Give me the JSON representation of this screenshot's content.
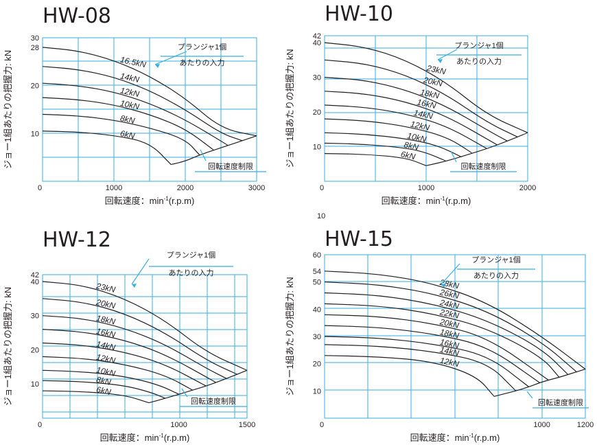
{
  "colors": {
    "grid": "#35aee2",
    "curve": "#231f20",
    "text": "#231f20"
  },
  "stray_label": "10",
  "chart_data": [
    {
      "type": "line",
      "title": "HW-08",
      "xlabel": "回転速度：min-1(r.p.m)",
      "ylabel": "ジョー1組あたりの把握力: kN",
      "xlim": [
        0,
        3000
      ],
      "ylim": [
        0,
        30
      ],
      "x_ticks": [
        "0",
        "1000",
        "2000",
        "3000"
      ],
      "y_ticks": [
        "10",
        "20",
        "28",
        "30"
      ],
      "annotations": [
        "プランジャ1個",
        "あたりの入力",
        "回転速度制限"
      ],
      "series": [
        {
          "name": "16.5kN",
          "x": [
            0,
            500,
            1000,
            1500,
            2000,
            2500,
            3000
          ],
          "y": [
            28,
            27.3,
            25.3,
            22,
            17.4,
            11,
            9.5
          ]
        },
        {
          "name": "14kN",
          "x": [
            0,
            500,
            1000,
            1500,
            2000,
            2500,
            2800
          ],
          "y": [
            24,
            23.4,
            21.8,
            19,
            15,
            10,
            8.5
          ]
        },
        {
          "name": "12kN",
          "x": [
            0,
            500,
            1000,
            1500,
            2000,
            2600
          ],
          "y": [
            20.5,
            20,
            18.7,
            16.3,
            12.9,
            7.5
          ]
        },
        {
          "name": "10kN",
          "x": [
            0,
            500,
            1000,
            1500,
            2000,
            2400
          ],
          "y": [
            17.5,
            17.1,
            16,
            14,
            11,
            6.5
          ]
        },
        {
          "name": "8kN",
          "x": [
            0,
            500,
            1000,
            1500,
            2000,
            2200
          ],
          "y": [
            14,
            13.7,
            12.8,
            11.2,
            8.8,
            5.5
          ]
        },
        {
          "name": "6kN",
          "x": [
            0,
            500,
            1000,
            1500,
            1800
          ],
          "y": [
            10.5,
            10.3,
            9.6,
            8.1,
            3.5
          ]
        },
        {
          "name": "回転速度制限",
          "x": [
            1800,
            2000,
            2200,
            2400,
            2600,
            2800,
            3000
          ],
          "y": [
            3.5,
            4.2,
            5.5,
            6.5,
            7.5,
            8.5,
            9.5
          ]
        }
      ]
    },
    {
      "type": "line",
      "title": "HW-10",
      "xlabel": "回転速度：min-1(r.p.m)",
      "ylabel": "ジョー1組あたりの把握力: kN",
      "xlim": [
        0,
        2000
      ],
      "ylim": [
        0,
        42
      ],
      "x_ticks": [
        "0",
        "1000",
        "2000"
      ],
      "y_ticks": [
        "10",
        "20",
        "30",
        "40",
        "42"
      ],
      "annotations": [
        "プランジャ1個",
        "あたりの入力",
        "回転速度制限"
      ],
      "series": [
        {
          "name": "23kN",
          "x": [
            0,
            400,
            800,
            1200,
            1600,
            2000
          ],
          "y": [
            40,
            38.8,
            35,
            28.5,
            19.2,
            14
          ]
        },
        {
          "name": "20kN",
          "x": [
            0,
            400,
            800,
            1200,
            1600,
            1900
          ],
          "y": [
            35,
            34,
            30.7,
            25,
            17,
            12.8
          ]
        },
        {
          "name": "18kN",
          "x": [
            0,
            400,
            800,
            1200,
            1600,
            1800
          ],
          "y": [
            30,
            29.2,
            26.4,
            21.7,
            14.8,
            11.6
          ]
        },
        {
          "name": "16kN",
          "x": [
            0,
            400,
            800,
            1200,
            1700
          ],
          "y": [
            26,
            25.3,
            23,
            18.9,
            10.5
          ]
        },
        {
          "name": "14kN",
          "x": [
            0,
            400,
            800,
            1200,
            1600
          ],
          "y": [
            22,
            21.4,
            19.5,
            16,
            9.4
          ]
        },
        {
          "name": "12kN",
          "x": [
            0,
            400,
            800,
            1200,
            1450
          ],
          "y": [
            18,
            17.5,
            15.9,
            12.9,
            8.2
          ]
        },
        {
          "name": "10kN",
          "x": [
            0,
            400,
            800,
            1100,
            1350
          ],
          "y": [
            14,
            13.6,
            12.3,
            10.5,
            7
          ]
        },
        {
          "name": "8kN",
          "x": [
            0,
            400,
            800,
            1000,
            1200
          ],
          "y": [
            11,
            10.7,
            9.6,
            8.3,
            5.8
          ]
        },
        {
          "name": "6kN",
          "x": [
            0,
            400,
            800,
            1000
          ],
          "y": [
            8,
            7.8,
            6.8,
            4.5
          ]
        },
        {
          "name": "回転速度制限",
          "x": [
            1000,
            1200,
            1400,
            1600,
            1800,
            2000
          ],
          "y": [
            4.5,
            5.8,
            7.6,
            9.4,
            11.6,
            14
          ]
        }
      ]
    },
    {
      "type": "line",
      "title": "HW-12",
      "xlabel": "回転速度：min-1(r.p.m)",
      "ylabel": "ジョー1組あたりの把握力: kN",
      "xlim": [
        0,
        1500
      ],
      "ylim": [
        0,
        42
      ],
      "x_ticks": [
        "0",
        "1000",
        "1500"
      ],
      "y_ticks": [
        "10",
        "20",
        "30",
        "40",
        "42"
      ],
      "annotations": [
        "プランジャ1個",
        "あたりの入力",
        "回転速度制限"
      ],
      "series": [
        {
          "name": "23kN",
          "x": [
            0,
            300,
            600,
            900,
            1200,
            1500
          ],
          "y": [
            40,
            38.9,
            35.1,
            28.6,
            19.3,
            14
          ]
        },
        {
          "name": "20kN",
          "x": [
            0,
            300,
            600,
            900,
            1200,
            1430
          ],
          "y": [
            35,
            34,
            30.7,
            25,
            17,
            12.8
          ]
        },
        {
          "name": "18kN",
          "x": [
            0,
            300,
            600,
            900,
            1200,
            1350
          ],
          "y": [
            30,
            29.2,
            26.4,
            21.6,
            14.6,
            11.6
          ]
        },
        {
          "name": "16kN",
          "x": [
            0,
            300,
            600,
            900,
            1270
          ],
          "y": [
            26,
            25.3,
            22.9,
            18.7,
            10.5
          ]
        },
        {
          "name": "14kN",
          "x": [
            0,
            300,
            600,
            900,
            1200
          ],
          "y": [
            22,
            21.4,
            19.4,
            15.8,
            9.4
          ]
        },
        {
          "name": "12kN",
          "x": [
            0,
            300,
            600,
            900,
            1100
          ],
          "y": [
            18,
            17.5,
            15.8,
            12.6,
            8.2
          ]
        },
        {
          "name": "10kN",
          "x": [
            0,
            300,
            600,
            850,
            1000
          ],
          "y": [
            14,
            13.6,
            12.3,
            9.8,
            7
          ]
        },
        {
          "name": "8kN",
          "x": [
            0,
            300,
            600,
            800,
            900
          ],
          "y": [
            11,
            10.7,
            9.6,
            7.5,
            5.8
          ]
        },
        {
          "name": "6kN",
          "x": [
            0,
            300,
            600,
            780
          ],
          "y": [
            8,
            7.8,
            6.8,
            4.5
          ]
        },
        {
          "name": "回転速度制限",
          "x": [
            780,
            900,
            1000,
            1100,
            1200,
            1350,
            1500
          ],
          "y": [
            4.5,
            5.8,
            7,
            8.2,
            9.4,
            11.6,
            14
          ]
        }
      ]
    },
    {
      "type": "line",
      "title": "HW-15",
      "xlabel": "回転速度：min-1(r.p.m)",
      "ylabel": "ジョー1組あたりの把握力: kN",
      "xlim": [
        0,
        1200
      ],
      "ylim": [
        0,
        60
      ],
      "x_ticks": [
        "0",
        "1000",
        "1200"
      ],
      "y_ticks": [
        "10",
        "20",
        "30",
        "40",
        "50",
        "54",
        "60"
      ],
      "annotations": [
        "プランジャ1個",
        "あたりの入力",
        "回転速度制限"
      ],
      "series": [
        {
          "name": "28kN",
          "x": [
            0,
            250,
            500,
            750,
            1000,
            1200
          ],
          "y": [
            54,
            53,
            49.5,
            42.5,
            30,
            18
          ]
        },
        {
          "name": "26kN",
          "x": [
            0,
            250,
            500,
            750,
            1000,
            1160
          ],
          "y": [
            50,
            49.1,
            45.8,
            39.4,
            28,
            17
          ]
        },
        {
          "name": "24kN",
          "x": [
            0,
            250,
            500,
            750,
            1000,
            1120
          ],
          "y": [
            46,
            45.2,
            42,
            36,
            25.5,
            16
          ]
        },
        {
          "name": "22kN",
          "x": [
            0,
            250,
            500,
            750,
            1000,
            1080
          ],
          "y": [
            42,
            41.3,
            38.4,
            33,
            22.5,
            15
          ]
        },
        {
          "name": "20kN",
          "x": [
            0,
            250,
            500,
            750,
            1030
          ],
          "y": [
            38,
            37.4,
            34.8,
            29.8,
            14
          ]
        },
        {
          "name": "18kN",
          "x": [
            0,
            250,
            500,
            750,
            990
          ],
          "y": [
            34,
            33.4,
            31,
            26.5,
            13
          ]
        },
        {
          "name": "16kN",
          "x": [
            0,
            250,
            500,
            750,
            940
          ],
          "y": [
            30,
            29.5,
            27.3,
            23.2,
            11.5
          ]
        },
        {
          "name": "14kN",
          "x": [
            0,
            250,
            500,
            750,
            880
          ],
          "y": [
            27,
            26.5,
            24.5,
            20.5,
            10
          ]
        },
        {
          "name": "12kN",
          "x": [
            0,
            250,
            500,
            700,
            780
          ],
          "y": [
            23,
            22.6,
            20.8,
            15.5,
            8
          ]
        },
        {
          "name": "回転速度制限",
          "x": [
            780,
            880,
            940,
            990,
            1030,
            1080,
            1120,
            1160,
            1200
          ],
          "y": [
            8,
            10,
            11.5,
            13,
            14,
            15,
            16,
            17,
            18
          ]
        }
      ]
    }
  ]
}
